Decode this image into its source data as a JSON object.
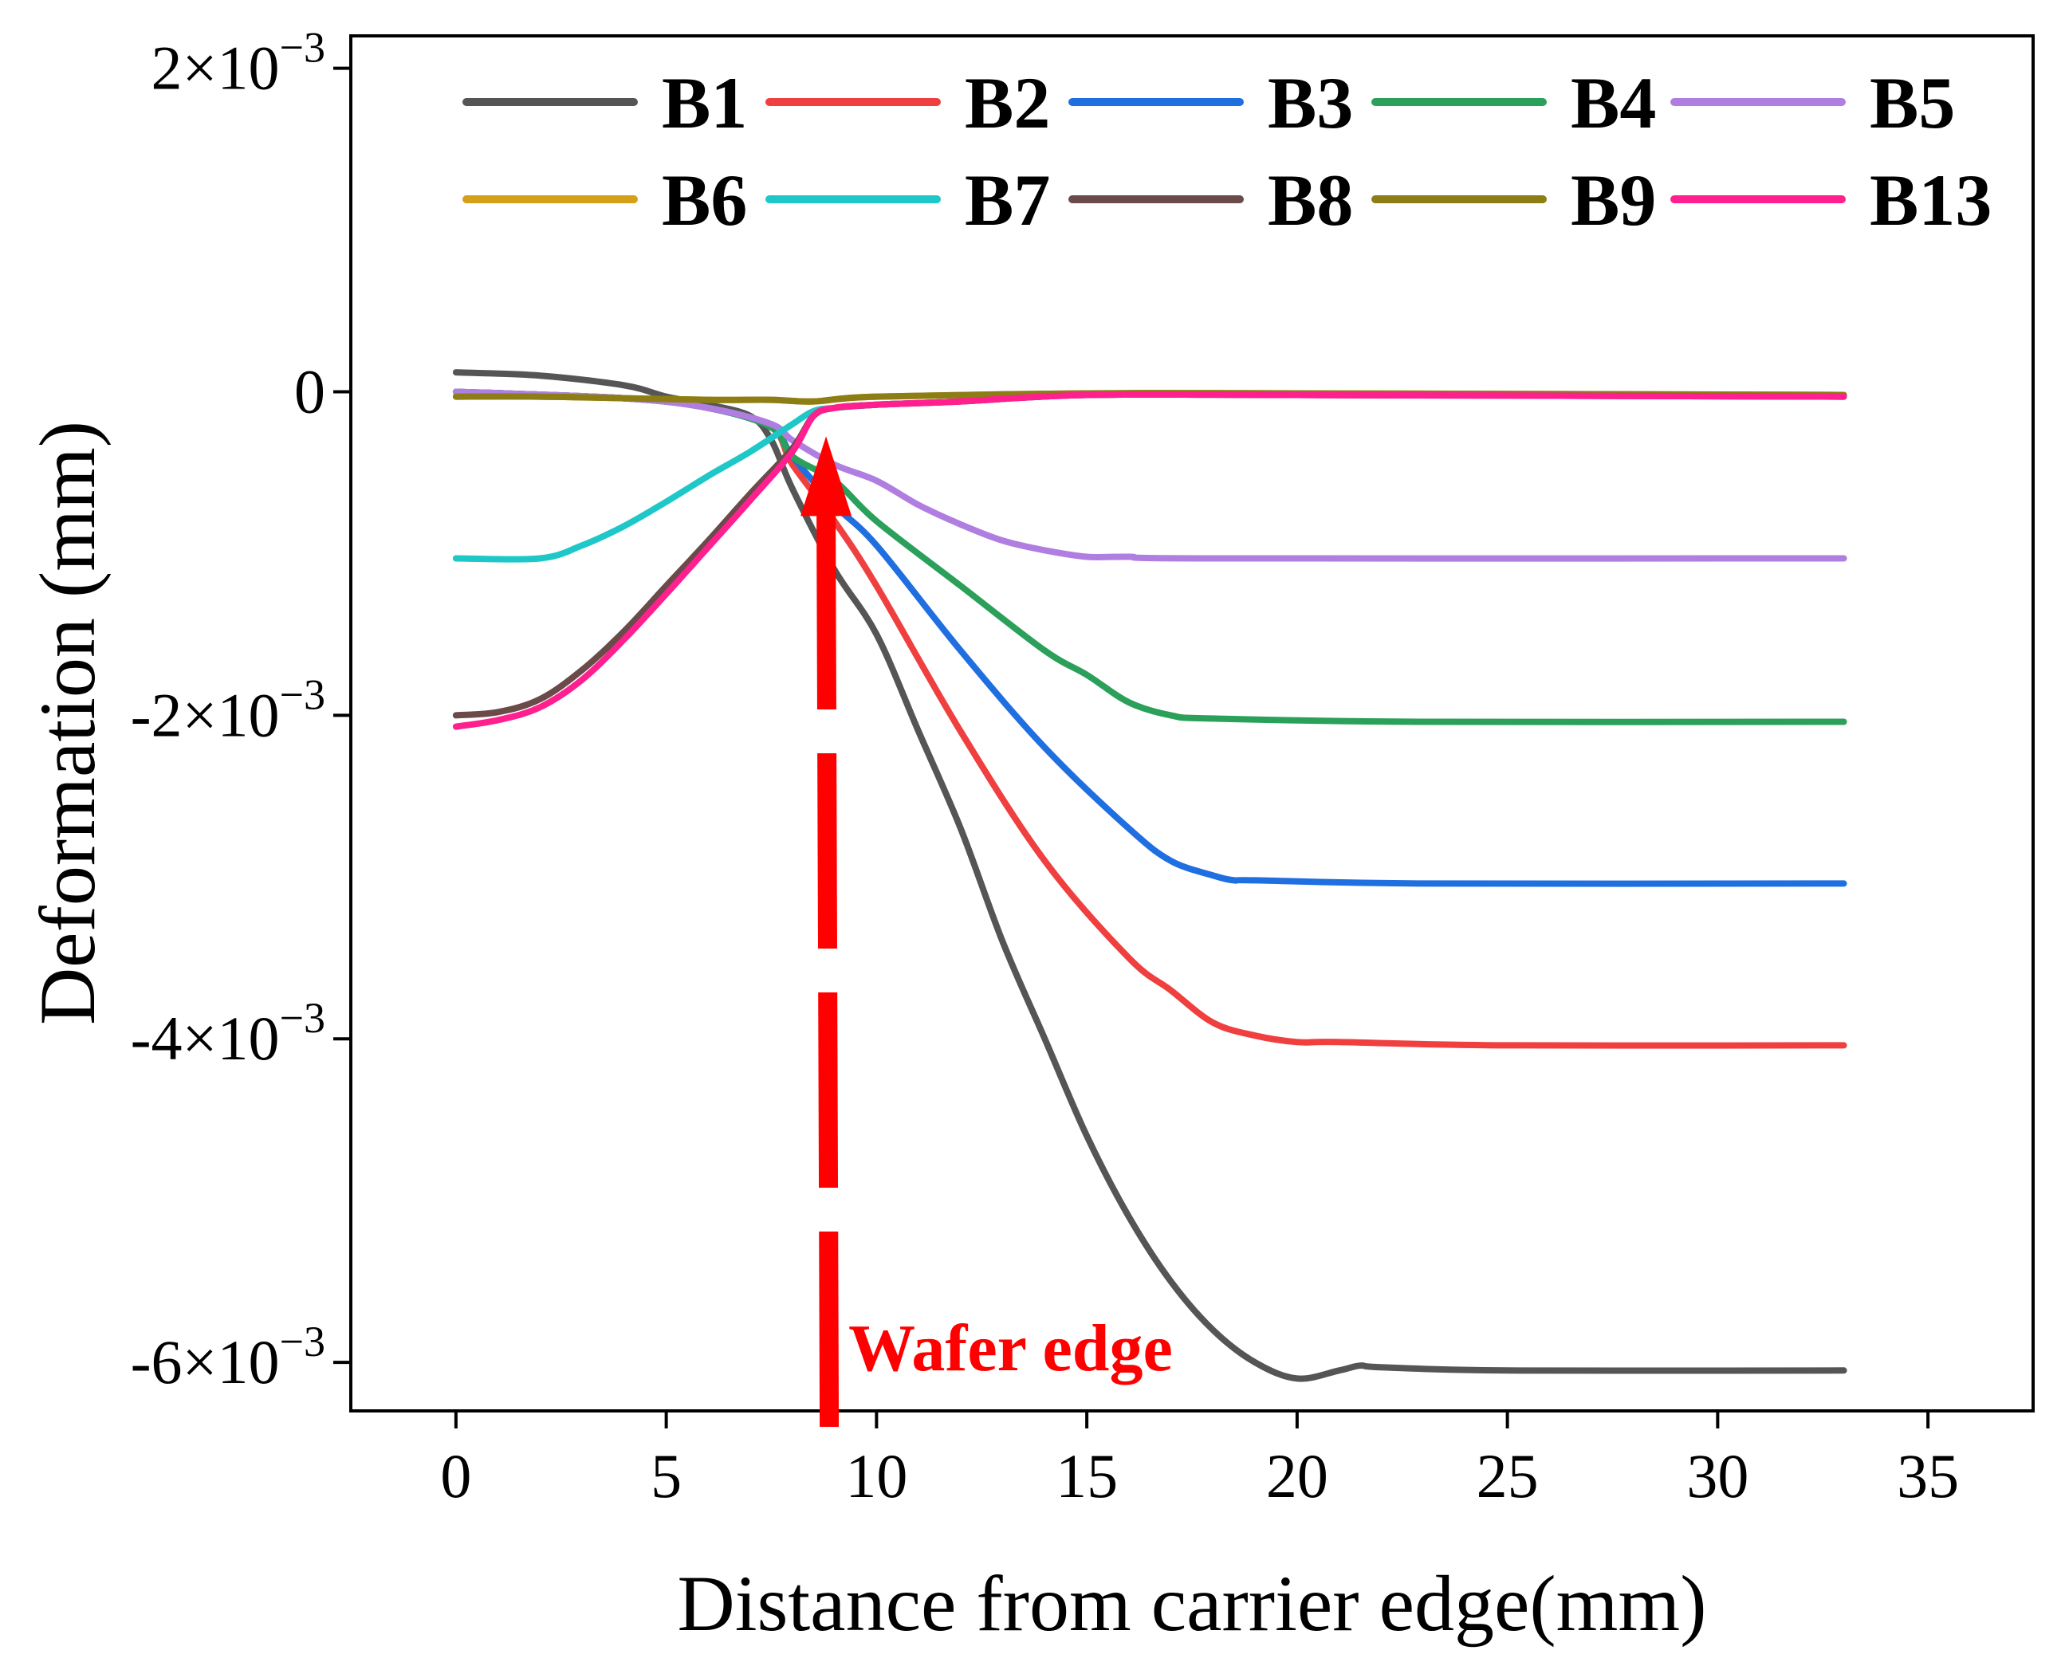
{
  "chart_data": {
    "type": "line",
    "title": "",
    "xlabel": "Distance from carrier edge(mm)",
    "ylabel": "Deformation (mm)",
    "xlim": [
      -2.5,
      37.5
    ],
    "ylim": [
      -0.0063,
      0.0022
    ],
    "x_ticks": [
      0,
      5,
      10,
      15,
      20,
      25,
      30,
      35
    ],
    "x_tick_labels": [
      "0",
      "5",
      "10",
      "15",
      "20",
      "25",
      "30",
      "35"
    ],
    "y_ticks": [
      0.002,
      0,
      -0.002,
      -0.004,
      -0.006
    ],
    "y_tick_labels": [
      {
        "mantissa": "2×",
        "base": "10",
        "exp": "−3"
      },
      {
        "mantissa": "0",
        "base": "",
        "exp": ""
      },
      {
        "mantissa": "-2×",
        "base": "10",
        "exp": "−3"
      },
      {
        "mantissa": "-4×",
        "base": "10",
        "exp": "−3"
      },
      {
        "mantissa": "-6×",
        "base": "10",
        "exp": "−3"
      }
    ],
    "legend_position": "top",
    "series": [
      {
        "name": "B1",
        "color": "#555555",
        "x": [
          0,
          2,
          4,
          5,
          6,
          7,
          7.5,
          8,
          9,
          10,
          11,
          12,
          13,
          14,
          15,
          16,
          17,
          18,
          19,
          20,
          21,
          21.5,
          22,
          25,
          33
        ],
        "y": [
          0.00012,
          0.0001,
          4e-05,
          -3e-05,
          -8e-05,
          -0.00015,
          -0.0003,
          -0.0006,
          -0.0011,
          -0.0015,
          -0.0021,
          -0.0027,
          -0.0034,
          -0.004,
          -0.0046,
          -0.0051,
          -0.0055,
          -0.0058,
          -0.006,
          -0.0061,
          -0.00605,
          -0.00602,
          -0.00603,
          -0.00605,
          -0.00605
        ]
      },
      {
        "name": "B2",
        "color": "#ef3f3f",
        "x": [
          0,
          4,
          6,
          7.5,
          8,
          9,
          10,
          12,
          14,
          16,
          17,
          18,
          19,
          20,
          21,
          25,
          33
        ],
        "y": [
          0,
          -4e-05,
          -0.0001,
          -0.00022,
          -0.00045,
          -0.0008,
          -0.0012,
          -0.0021,
          -0.0029,
          -0.0035,
          -0.0037,
          -0.0039,
          -0.00398,
          -0.00402,
          -0.00402,
          -0.00404,
          -0.00404
        ]
      },
      {
        "name": "B3",
        "color": "#1f6fe0",
        "x": [
          0,
          4,
          6,
          7.5,
          8,
          9,
          10,
          12,
          14,
          16,
          17,
          18,
          18.5,
          19,
          23,
          33
        ],
        "y": [
          0,
          -4e-05,
          -0.0001,
          -0.00022,
          -0.0004,
          -0.0007,
          -0.00095,
          -0.0016,
          -0.0022,
          -0.0027,
          -0.0029,
          -0.00299,
          -0.00302,
          -0.00302,
          -0.00304,
          -0.00304
        ]
      },
      {
        "name": "B4",
        "color": "#2ba05a",
        "x": [
          0,
          4,
          6,
          7.5,
          8,
          9,
          10,
          12,
          14,
          15,
          16,
          17,
          18,
          23,
          33
        ],
        "y": [
          0,
          -4e-05,
          -0.0001,
          -0.00022,
          -0.0004,
          -0.00055,
          -0.0008,
          -0.0012,
          -0.0016,
          -0.00175,
          -0.00192,
          -0.002,
          -0.00202,
          -0.00204,
          -0.00204
        ]
      },
      {
        "name": "B5",
        "color": "#b07ee0",
        "x": [
          0,
          4,
          6,
          7.5,
          8,
          9,
          10,
          11,
          12,
          13,
          14,
          15,
          16,
          18,
          33
        ],
        "y": [
          0,
          -4e-05,
          -0.0001,
          -0.0002,
          -0.0003,
          -0.00045,
          -0.00055,
          -0.0007,
          -0.00082,
          -0.00092,
          -0.00098,
          -0.00102,
          -0.00102,
          -0.00103,
          -0.00103
        ]
      },
      {
        "name": "B6",
        "color": "#d4a017",
        "x": [
          0,
          2,
          4,
          6,
          7.5,
          8.5,
          10,
          15,
          20,
          33
        ],
        "y": [
          -3e-05,
          -3e-05,
          -4e-05,
          -5e-05,
          -5e-05,
          -6e-05,
          -3e-05,
          -1e-05,
          -1e-05,
          -2e-05
        ]
      },
      {
        "name": "B7",
        "color": "#1fc8c8",
        "x": [
          0,
          2,
          3,
          4,
          5,
          6,
          7,
          8,
          8.5,
          9,
          10,
          12,
          15,
          20,
          33
        ],
        "y": [
          -0.00103,
          -0.00103,
          -0.00095,
          -0.00083,
          -0.00068,
          -0.00052,
          -0.00037,
          -0.0002,
          -0.00012,
          -0.0001,
          -8e-05,
          -6e-05,
          -2e-05,
          -2e-05,
          -3e-05
        ]
      },
      {
        "name": "B8",
        "color": "#6b4a4a",
        "x": [
          0,
          1,
          2,
          3,
          4,
          5,
          6,
          7,
          8,
          8.5,
          9,
          10,
          12,
          15,
          20,
          33
        ],
        "y": [
          -0.002,
          -0.00198,
          -0.0019,
          -0.00172,
          -0.00148,
          -0.0012,
          -0.00092,
          -0.00063,
          -0.00035,
          -0.00015,
          -0.0001,
          -8e-05,
          -6e-05,
          -2e-05,
          -2e-05,
          -3e-05
        ]
      },
      {
        "name": "B9",
        "color": "#8c7d14",
        "x": [
          0,
          2,
          4,
          6,
          7.5,
          8.5,
          10,
          15,
          20,
          33
        ],
        "y": [
          -3e-05,
          -3e-05,
          -4e-05,
          -5e-05,
          -5e-05,
          -6e-05,
          -3e-05,
          -1e-05,
          -1e-05,
          -2e-05
        ]
      },
      {
        "name": "B13",
        "color": "#ff1f8f",
        "x": [
          0,
          1,
          2,
          3,
          4,
          5,
          6,
          7,
          8,
          8.5,
          9,
          10,
          12,
          15,
          20,
          33
        ],
        "y": [
          -0.00207,
          -0.00203,
          -0.00195,
          -0.00178,
          -0.00153,
          -0.00125,
          -0.00096,
          -0.00067,
          -0.00037,
          -0.00015,
          -0.0001,
          -8e-05,
          -6e-05,
          -2e-05,
          -2e-05,
          -3e-05
        ]
      }
    ],
    "annotation": {
      "text": "Wafer edge",
      "color": "#ff0000",
      "x": 8.8,
      "y_from": -0.0063,
      "y_to": -0.0003
    }
  }
}
